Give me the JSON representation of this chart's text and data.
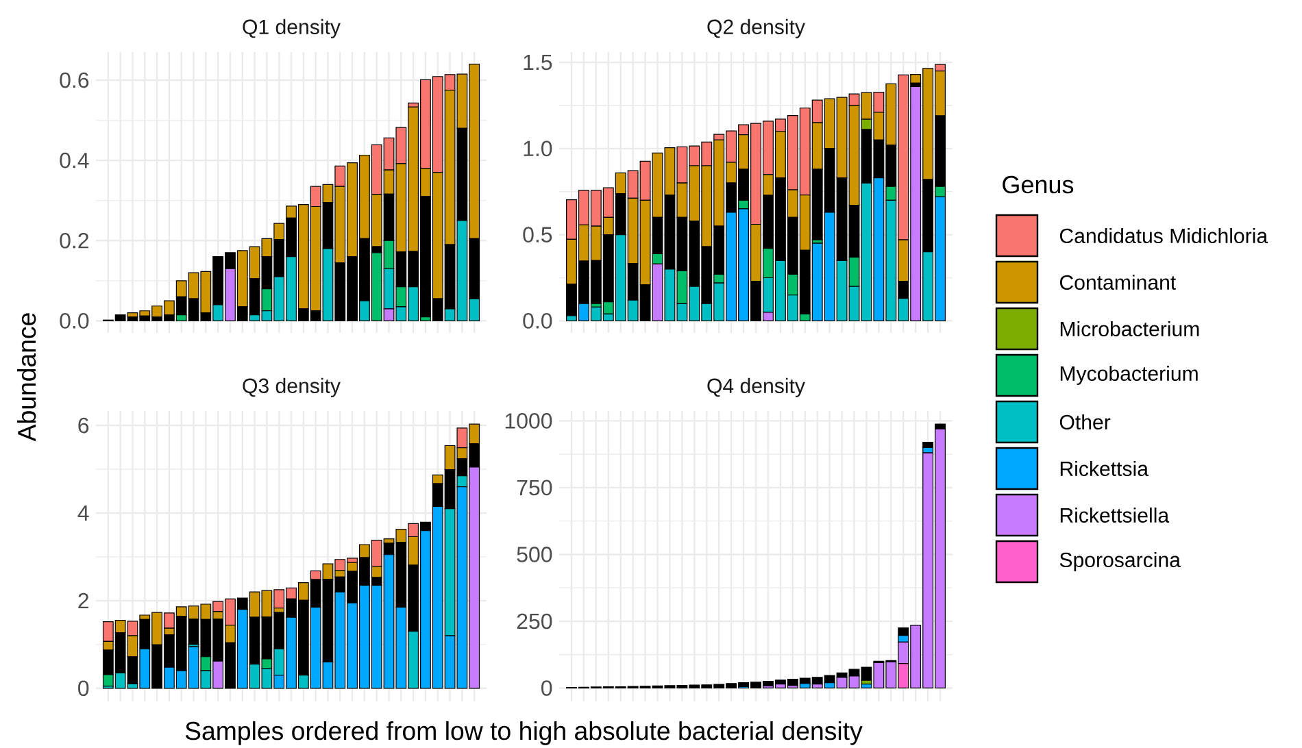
{
  "chart_data": [
    {
      "type": "bar",
      "stacked": true,
      "title": "Q1 density",
      "xlabel": "Samples ordered from low to high absolute bacterial density",
      "ylabel": "Abundance",
      "legend": "right",
      "legend_title": "Genus",
      "grid": true,
      "tick_labels": "y",
      "categories": [
        null,
        null,
        null,
        null,
        null,
        null,
        null,
        null,
        null,
        null,
        null,
        null,
        null,
        null,
        null,
        null,
        null,
        null,
        null,
        null,
        null,
        null,
        null,
        null,
        null,
        null,
        null,
        null,
        null,
        null,
        null
      ],
      "ylim": [
        -0.03,
        0.67
      ],
      "yticks": [
        {
          "value": 0,
          "label": "0.0"
        },
        {
          "value": 0.2,
          "label": "0.2"
        },
        {
          "value": 0.4,
          "label": "0.4"
        },
        {
          "value": 0.6,
          "label": "0.6"
        }
      ],
      "series": [
        {
          "name": "Sporosarcina",
          "color": "#ff61cc",
          "values": [
            0,
            0,
            0,
            0,
            0,
            0,
            0,
            0,
            0,
            0,
            0,
            0,
            0,
            0,
            0,
            0,
            0,
            0,
            0,
            0,
            0,
            0,
            0,
            0,
            0,
            0,
            0,
            0,
            0,
            0,
            0
          ]
        },
        {
          "name": "Rickettsiella",
          "color": "#c77cff",
          "values": [
            0,
            0,
            0,
            0,
            0,
            0,
            0,
            0,
            0,
            0,
            0.13,
            0,
            0,
            0,
            0,
            0,
            0,
            0,
            0,
            0,
            0,
            0,
            0,
            0.03,
            0,
            0,
            0,
            0,
            0,
            0,
            0
          ]
        },
        {
          "name": "Rickettsia",
          "color": "#00a9ff",
          "values": [
            0,
            0,
            0,
            0,
            0,
            0,
            0,
            0,
            0,
            0,
            0,
            0,
            0,
            0,
            0,
            0,
            0,
            0,
            0,
            0,
            0,
            0,
            0,
            0,
            0,
            0,
            0,
            0,
            0,
            0,
            0
          ]
        },
        {
          "name": "Other",
          "color": "#00bfc4",
          "values": [
            0,
            0,
            0,
            0,
            0,
            0,
            0,
            0,
            0,
            0.04,
            0,
            0,
            0.015,
            0.025,
            0.11,
            0.16,
            0,
            0,
            0.18,
            0,
            0,
            0.05,
            0,
            0.1,
            0.035,
            0.085,
            0,
            0,
            0.03,
            0.25,
            0.055
          ]
        },
        {
          "name": "Mycobacterium",
          "color": "#00be67",
          "values": [
            0,
            0,
            0,
            0,
            0,
            0,
            0.015,
            0,
            0,
            0,
            0,
            0,
            0,
            0.055,
            0,
            0,
            0,
            0,
            0,
            0,
            0,
            0,
            0.17,
            0.07,
            0.05,
            0,
            0.01,
            0,
            0,
            0,
            0
          ]
        },
        {
          "color": "#000000",
          "values": [
            0.002,
            0.015,
            0.01,
            0.012,
            0.01,
            0.015,
            0.045,
            0.055,
            0.02,
            0.12,
            0.04,
            0.035,
            0.09,
            0.08,
            0.093,
            0.096,
            0.03,
            0.025,
            0.115,
            0.145,
            0.16,
            0.155,
            0.015,
            0.116,
            0.087,
            0.088,
            0.3,
            0.055,
            0.16,
            0.23,
            0.15
          ]
        },
        {
          "name": "Microbacterium",
          "color": "#7cae00",
          "values": [
            0,
            0,
            0,
            0,
            0,
            0,
            0,
            0,
            0,
            0,
            0,
            0,
            0,
            0,
            0,
            0,
            0,
            0,
            0,
            0,
            0,
            0,
            0,
            0,
            0,
            0,
            0,
            0,
            0,
            0,
            0
          ]
        },
        {
          "name": "Contaminant",
          "color": "#cd9600",
          "values": [
            0,
            0,
            0.01,
            0.013,
            0.027,
            0.035,
            0.04,
            0.065,
            0.103,
            0,
            0,
            0.14,
            0.08,
            0.045,
            0.04,
            0.03,
            0.26,
            0.26,
            0.045,
            0.19,
            0.234,
            0.208,
            0.13,
            0.06,
            0.22,
            0.36,
            0.07,
            0.315,
            0.385,
            0.135,
            0.435
          ]
        },
        {
          "name": "Candidatus Midichloria",
          "color": "#f8766d",
          "values": [
            0,
            0,
            0,
            0,
            0,
            0,
            0,
            0,
            0,
            0,
            0,
            0,
            0,
            0,
            0,
            0,
            0,
            0.05,
            0,
            0.051,
            0,
            0,
            0.124,
            0.08,
            0.09,
            0.01,
            0.221,
            0.239,
            0.039,
            0,
            0
          ]
        }
      ]
    },
    {
      "type": "bar",
      "stacked": true,
      "title": "Q2 density",
      "grid": true,
      "tick_labels": "y",
      "categories": [
        null,
        null,
        null,
        null,
        null,
        null,
        null,
        null,
        null,
        null,
        null,
        null,
        null,
        null,
        null,
        null,
        null,
        null,
        null,
        null,
        null,
        null,
        null,
        null,
        null,
        null,
        null,
        null,
        null,
        null,
        null
      ],
      "ylim": [
        -0.07,
        1.56
      ],
      "yticks": [
        {
          "value": 0,
          "label": "0.0"
        },
        0.5,
        {
          "value": 1,
          "label": "1.0"
        },
        1.5
      ],
      "series": [
        {
          "color": "#c77cff",
          "values": [
            0,
            0,
            0,
            0,
            0,
            0,
            0,
            0.33,
            0,
            0,
            0,
            0,
            0,
            0,
            0,
            0,
            0.05,
            0,
            0,
            0,
            0,
            0,
            0,
            0,
            0,
            0,
            0,
            0,
            1.36,
            0,
            0
          ]
        },
        {
          "color": "#00a9ff",
          "values": [
            0,
            0.1,
            0,
            0,
            0,
            0,
            0,
            0,
            0,
            0,
            0,
            0,
            0,
            0.63,
            0.65,
            0,
            0,
            0,
            0,
            0,
            0.45,
            0.63,
            0,
            0,
            0,
            0.83,
            0,
            0,
            0,
            0,
            0.72
          ]
        },
        {
          "color": "#00bfc4",
          "values": [
            0.03,
            0,
            0.08,
            0.04,
            0.5,
            0.12,
            0,
            0,
            0.3,
            0.1,
            0.2,
            0.1,
            0.22,
            0,
            0,
            0,
            0.2,
            0.35,
            0.15,
            0,
            0,
            0,
            0.35,
            0.2,
            0.8,
            0,
            0.7,
            0.13,
            0,
            0.4,
            0
          ]
        },
        {
          "color": "#00be67",
          "values": [
            0,
            0,
            0.02,
            0.07,
            0,
            0,
            0,
            0.06,
            0,
            0.19,
            0,
            0,
            0.05,
            0,
            0.05,
            0,
            0.17,
            0,
            0.12,
            0.04,
            0.02,
            0,
            0,
            0.17,
            0,
            0,
            0.08,
            0,
            0,
            0,
            0.06
          ]
        },
        {
          "color": "#000000",
          "values": [
            0.183,
            0.247,
            0.25,
            0.39,
            0.239,
            0.212,
            0.21,
            0.21,
            0.43,
            0.31,
            0.38,
            0.33,
            0.28,
            0.17,
            0.18,
            0.23,
            0.309,
            0.48,
            0.33,
            0.37,
            0.41,
            0.37,
            0.48,
            0.3,
            0.31,
            0.22,
            0.24,
            0.1,
            0.02,
            0.42,
            0.41
          ]
        },
        {
          "color": "#7cae00",
          "values": [
            0,
            0,
            0,
            0,
            0,
            0,
            0,
            0,
            0,
            0,
            0,
            0,
            0,
            0,
            0,
            0,
            0,
            0,
            0,
            0,
            0,
            0,
            0,
            0,
            0.06,
            0,
            0,
            0,
            0,
            0,
            0
          ]
        },
        {
          "color": "#cd9600",
          "values": [
            0.26,
            0.21,
            0.2,
            0.1,
            0.12,
            0.38,
            0.49,
            0.374,
            0.275,
            0.2,
            0.32,
            0.47,
            0.5,
            0.12,
            0.2,
            0.33,
            0.12,
            0.27,
            0.16,
            0.32,
            0.27,
            0.289,
            0.467,
            0.58,
            0.155,
            0.16,
            0.356,
            0.24,
            0.05,
            0.645,
            0.26
          ]
        },
        {
          "color": "#f8766d",
          "values": [
            0.23,
            0.2,
            0.207,
            0.172,
            0,
            0.16,
            0.226,
            0,
            0,
            0.21,
            0.115,
            0.138,
            0.032,
            0.182,
            0.058,
            0.586,
            0.31,
            0.071,
            0.432,
            0.505,
            0.131,
            0,
            0,
            0.067,
            0,
            0.117,
            0,
            0.957,
            0,
            0,
            0.038
          ]
        }
      ]
    },
    {
      "type": "bar",
      "stacked": true,
      "title": "Q3 density",
      "grid": true,
      "tick_labels": "y",
      "categories": [
        null,
        null,
        null,
        null,
        null,
        null,
        null,
        null,
        null,
        null,
        null,
        null,
        null,
        null,
        null,
        null,
        null,
        null,
        null,
        null,
        null,
        null,
        null,
        null,
        null,
        null,
        null,
        null,
        null,
        null,
        null
      ],
      "ylim": [
        -0.3,
        6.33
      ],
      "yticks": [
        0,
        2,
        4,
        6
      ],
      "series": [
        {
          "color": "#c77cff",
          "values": [
            0,
            0,
            0,
            0,
            0,
            0,
            0,
            0,
            0,
            0.62,
            0,
            0,
            0,
            0,
            0,
            0,
            0,
            0,
            0,
            0,
            0,
            0,
            0,
            0,
            0,
            0,
            0,
            0,
            0,
            0,
            5.05
          ]
        },
        {
          "color": "#00a9ff",
          "values": [
            0,
            0,
            0,
            0.9,
            0,
            0.48,
            0.4,
            0.95,
            0,
            0,
            0,
            1.8,
            0,
            0,
            0.3,
            1.62,
            0,
            1.85,
            0.6,
            2.2,
            1.95,
            2.35,
            2.35,
            3.05,
            1.85,
            0,
            3.6,
            4.15,
            1.2,
            4.6,
            0
          ]
        },
        {
          "color": "#00bfc4",
          "values": [
            0.05,
            0.35,
            0.1,
            0,
            0,
            0,
            0,
            0.05,
            0.4,
            0,
            0,
            0,
            0.55,
            0.45,
            0.6,
            0,
            0.3,
            0,
            0,
            0,
            0,
            0,
            0,
            0,
            0,
            1.3,
            0,
            0,
            2.9,
            0.25,
            0
          ]
        },
        {
          "color": "#00be67",
          "values": [
            0.26,
            0,
            0,
            0,
            0,
            0,
            0,
            0,
            0.32,
            0,
            0,
            0,
            0,
            0.22,
            0,
            0,
            0,
            0,
            0,
            0,
            0,
            0,
            0,
            0,
            0,
            0,
            0,
            0,
            0,
            0,
            0
          ]
        },
        {
          "color": "#000000",
          "values": [
            0.56,
            0.92,
            0.62,
            0.67,
            0.99,
            0.74,
            1.24,
            0.58,
            0.85,
            0.96,
            1.04,
            0.26,
            1.07,
            0.96,
            0.83,
            0.42,
            1.71,
            0.63,
            1.89,
            0.34,
            0.72,
            0.63,
            0.18,
            0.26,
            1.48,
            1.51,
            0.19,
            0.52,
            0.89,
            0.39,
            0.53
          ]
        },
        {
          "color": "#cd9600",
          "values": [
            0.2,
            0.28,
            0.48,
            0.1,
            0.74,
            0.15,
            0.22,
            0.3,
            0.35,
            0.17,
            0.4,
            0,
            0.58,
            0.6,
            0.1,
            0,
            0.4,
            0,
            0.35,
            0.15,
            0.2,
            0.3,
            0.25,
            0.1,
            0.3,
            0.65,
            0,
            0.2,
            0.55,
            0.25,
            0.45
          ]
        },
        {
          "color": "#f8766d",
          "values": [
            0.45,
            0,
            0.33,
            0,
            0,
            0.35,
            0,
            0,
            0,
            0.23,
            0.6,
            0,
            0,
            0,
            0.42,
            0.25,
            0,
            0.2,
            0,
            0.25,
            0.1,
            0,
            0.6,
            0,
            0,
            0.3,
            0,
            0,
            0,
            0.45,
            0
          ]
        }
      ]
    },
    {
      "type": "bar",
      "stacked": true,
      "title": "Q4 density",
      "grid": true,
      "tick_labels": "y",
      "categories": [
        null,
        null,
        null,
        null,
        null,
        null,
        null,
        null,
        null,
        null,
        null,
        null,
        null,
        null,
        null,
        null,
        null,
        null,
        null,
        null,
        null,
        null,
        null,
        null,
        null,
        null,
        null,
        null,
        null,
        null,
        null
      ],
      "ylim": [
        -50,
        1037
      ],
      "yticks": [
        0,
        250,
        500,
        750,
        1000
      ],
      "series": [
        {
          "color": "#ff61cc",
          "values": [
            0,
            0,
            0,
            0,
            0,
            0,
            0,
            0,
            0,
            0,
            0,
            0,
            0,
            0,
            0,
            0,
            0,
            0,
            0,
            0,
            0,
            0,
            0,
            0,
            0,
            0,
            0,
            92,
            0,
            0,
            0
          ]
        },
        {
          "color": "#c77cff",
          "values": [
            0,
            0,
            0,
            0,
            0,
            0,
            0,
            0,
            0,
            0,
            0,
            0,
            0,
            0,
            0,
            0,
            8,
            15,
            10,
            0,
            15,
            0,
            40,
            45,
            0,
            95,
            98,
            80,
            235,
            880,
            970
          ]
        },
        {
          "color": "#00a9ff",
          "values": [
            0,
            0,
            0,
            0,
            0,
            0,
            0,
            0,
            0,
            0,
            0,
            0,
            0,
            0,
            5,
            0,
            0,
            0,
            0,
            17,
            0,
            20,
            0,
            0,
            15,
            0,
            0,
            25,
            0,
            20,
            0
          ]
        },
        {
          "color": "#7cae00",
          "values": [
            0,
            0,
            0,
            0,
            0,
            0,
            0,
            0,
            0,
            0,
            0,
            0,
            0,
            0,
            0,
            0,
            0,
            0,
            0,
            0,
            0,
            0,
            0,
            0,
            14,
            0,
            0,
            0,
            0,
            0,
            0
          ]
        },
        {
          "color": "#000000",
          "values": [
            2,
            3,
            4,
            5,
            5,
            6,
            7,
            8,
            9,
            10,
            11,
            12,
            14,
            17,
            15,
            22,
            17,
            15,
            23,
            20,
            25,
            27,
            17,
            25,
            49,
            5,
            5,
            28,
            0,
            20,
            18
          ]
        }
      ]
    }
  ]
}
